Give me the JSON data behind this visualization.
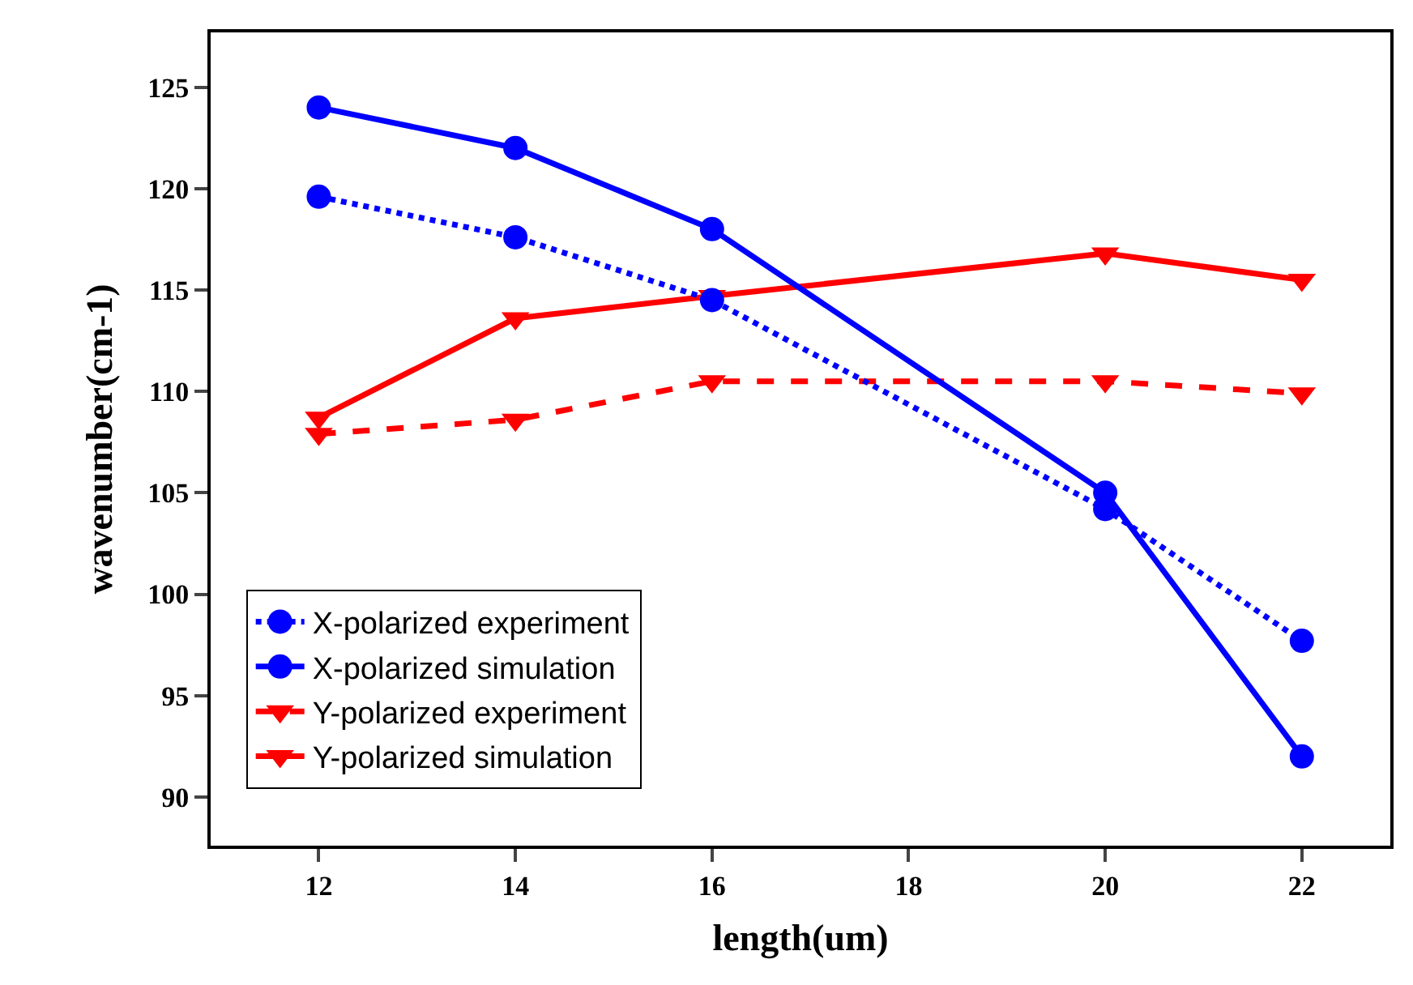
{
  "chart_data": {
    "type": "line",
    "xlabel": "length(um)",
    "ylabel": "wavenumber(cm-1)",
    "x": [
      12,
      14,
      16,
      20,
      22
    ],
    "xlim": [
      10.9,
      22.9
    ],
    "xticks": [
      12,
      14,
      16,
      18,
      20,
      22
    ],
    "ylim": [
      87.6,
      127.7
    ],
    "yticks": [
      90,
      95,
      100,
      105,
      110,
      115,
      120,
      125
    ],
    "legend": "bottom left",
    "series": [
      {
        "name": "X-polarized experiment",
        "color": "#0000ff",
        "values": [
          119.6,
          117.6,
          114.5,
          104.2,
          97.7
        ],
        "marker": "circle",
        "line_style": "dotted"
      },
      {
        "name": "X-polarized simulation",
        "color": "#0000ff",
        "values": [
          124,
          122,
          118,
          105,
          92
        ],
        "marker": "circle",
        "line_style": "solid"
      },
      {
        "name": "Y-polarized experiment",
        "color": "#ff0000",
        "values": [
          107.9,
          108.6,
          110.5,
          110.5,
          109.9
        ],
        "marker": "triangle",
        "line_style": "dashed"
      },
      {
        "name": "Y-polarized simulation",
        "color": "#ff0000",
        "values": [
          108.7,
          113.6,
          114.7,
          116.8,
          115.5
        ],
        "marker": "triangle",
        "line_style": "solid"
      }
    ]
  }
}
